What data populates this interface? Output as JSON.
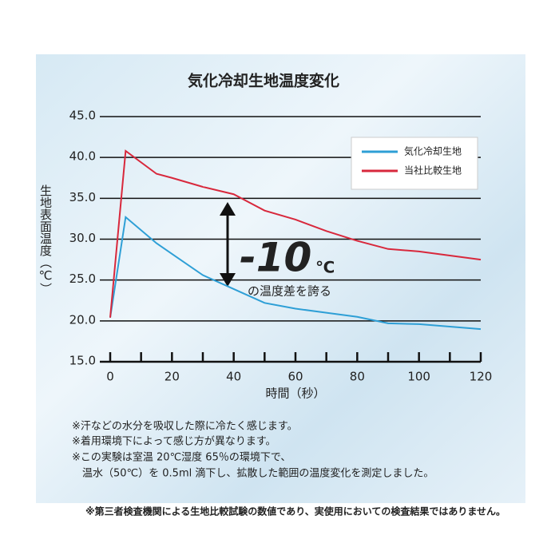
{
  "chart_data": {
    "type": "line",
    "title": "気化冷却生地温度変化",
    "x_label": "時間（秒）",
    "y_label": "生地表面温度（℃）",
    "x": [
      0,
      5,
      15,
      20,
      30,
      40,
      50,
      60,
      70,
      80,
      90,
      100,
      110,
      120
    ],
    "series": [
      {
        "name": "気化冷却生地",
        "color": "#2e9fd6",
        "values": [
          20.4,
          32.7,
          29.5,
          28.2,
          25.6,
          23.9,
          22.2,
          21.5,
          21.0,
          20.5,
          19.7,
          19.6,
          19.3,
          19.0
        ]
      },
      {
        "name": "当社比較生地",
        "color": "#d8283c",
        "values": [
          20.4,
          40.8,
          38.0,
          37.5,
          36.4,
          35.5,
          33.5,
          32.4,
          31.0,
          29.8,
          28.8,
          28.5,
          28.0,
          27.5
        ]
      }
    ],
    "xlim": [
      0,
      120
    ],
    "xticks": [
      0,
      20,
      40,
      60,
      80,
      100,
      120
    ],
    "ylim": [
      15,
      45
    ],
    "yticks": [
      {
        "value": 15,
        "label": "15.0"
      },
      {
        "value": 20,
        "label": "20.0"
      },
      {
        "value": 25,
        "label": "25.0"
      },
      {
        "value": 30,
        "label": "30.0"
      },
      {
        "value": 35,
        "label": "35.0"
      },
      {
        "value": 40,
        "label": "40.0"
      },
      {
        "value": 45,
        "label": "45.0"
      }
    ],
    "grid": true,
    "legend": "upper right",
    "annotation": {
      "big": "-10",
      "unit": "℃",
      "text": "の温度差を誇る"
    }
  },
  "notes": [
    "※汗などの水分を吸収した際に冷たく感じます。",
    "※着用環境下によって感じ方が異なります。",
    "※この実験は室温 20℃湿度 65％の環境下で、",
    "　温水（50℃）を 0.5ml 滴下し、拡散した範囲の温度変化を測定しました。"
  ],
  "footer": "※第三者検査機関による生地比較試験の数値であり、実使用においての検査結果ではありません。"
}
